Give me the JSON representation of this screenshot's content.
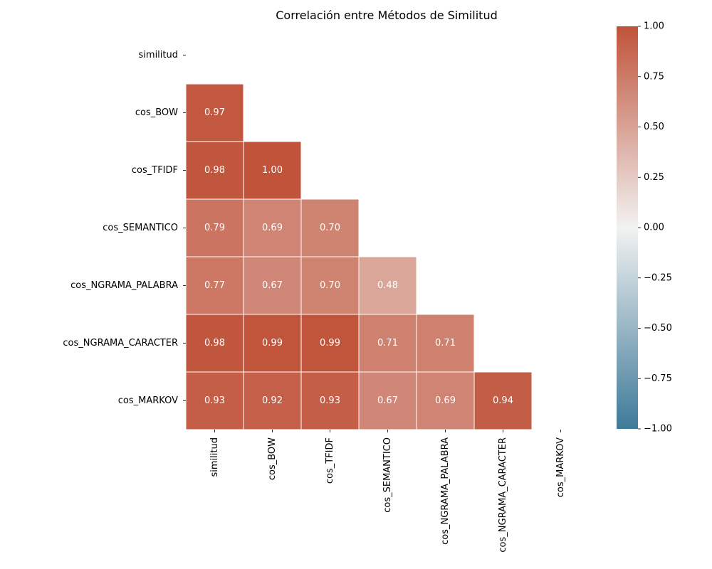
{
  "chart_data": {
    "type": "heatmap",
    "title": "Correlación entre Métodos de Similitud",
    "xlabel": "",
    "ylabel": "",
    "row_labels": [
      "similitud",
      "cos_BOW",
      "cos_TFIDF",
      "cos_SEMANTICO",
      "cos_NGRAMA_PALABRA",
      "cos_NGRAMA_CARACTER",
      "cos_MARKOV"
    ],
    "col_labels": [
      "similitud",
      "cos_BOW",
      "cos_TFIDF",
      "cos_SEMANTICO",
      "cos_NGRAMA_PALABRA",
      "cos_NGRAMA_CARACTER",
      "cos_MARKOV"
    ],
    "mask": "upper-triangle-including-diagonal",
    "values": [
      [
        null,
        null,
        null,
        null,
        null,
        null,
        null
      ],
      [
        0.97,
        null,
        null,
        null,
        null,
        null,
        null
      ],
      [
        0.98,
        1.0,
        null,
        null,
        null,
        null,
        null
      ],
      [
        0.79,
        0.69,
        0.7,
        null,
        null,
        null,
        null
      ],
      [
        0.77,
        0.67,
        0.7,
        0.48,
        null,
        null,
        null
      ],
      [
        0.98,
        0.99,
        0.99,
        0.71,
        0.71,
        null,
        null
      ],
      [
        0.93,
        0.92,
        0.93,
        0.67,
        0.69,
        0.94,
        null
      ]
    ],
    "value_format": "0.00",
    "colorbar": {
      "min": -1.0,
      "max": 1.0,
      "ticks": [
        1.0,
        0.75,
        0.5,
        0.25,
        0.0,
        -0.25,
        -0.5,
        -0.75,
        -1.0
      ],
      "tick_labels": [
        "1.00",
        "0.75",
        "0.50",
        "0.25",
        "0.00",
        "−0.25",
        "−0.50",
        "−0.75",
        "−1.00"
      ],
      "colormap": "diverging blue-white-red",
      "color_low": "#3e7a98",
      "color_mid": "#f2f2f2",
      "color_high": "#c0533a"
    },
    "cell_border_color": "#ffffff",
    "grid": false,
    "legend": "colorbar-right"
  }
}
